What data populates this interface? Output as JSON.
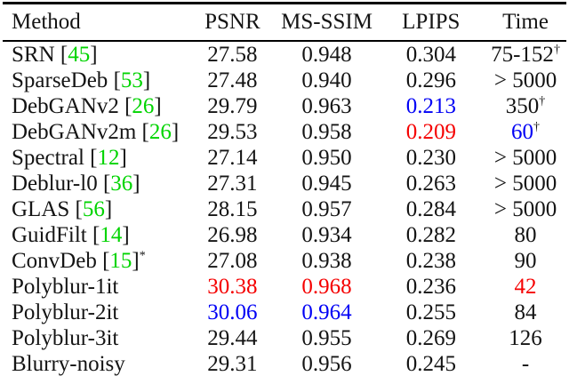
{
  "colors": {
    "black": "#141414",
    "green": "#00d400",
    "blue": "#0000f5",
    "red": "#f50000"
  },
  "table": {
    "columns": [
      "Method",
      "PSNR",
      "MS-SSIM",
      "LPIPS",
      "Time"
    ],
    "rows": [
      {
        "method": "SRN",
        "ref": "45",
        "method_sup": "",
        "psnr": {
          "text": "27.58",
          "color": "black"
        },
        "msssim": {
          "text": "0.948",
          "color": "black"
        },
        "lpips": {
          "text": "0.304",
          "color": "black"
        },
        "time": {
          "text": "75-152",
          "color": "black",
          "sup": "†",
          "sup_color": "black"
        }
      },
      {
        "method": "SparseDeb",
        "ref": "53",
        "method_sup": "",
        "psnr": {
          "text": "27.48",
          "color": "black"
        },
        "msssim": {
          "text": "0.940",
          "color": "black"
        },
        "lpips": {
          "text": "0.296",
          "color": "black"
        },
        "time": {
          "text": "> 5000",
          "color": "black",
          "sup": "",
          "sup_color": "black"
        }
      },
      {
        "method": "DebGANv2",
        "ref": "26",
        "method_sup": "",
        "psnr": {
          "text": "29.79",
          "color": "black"
        },
        "msssim": {
          "text": "0.963",
          "color": "black"
        },
        "lpips": {
          "text": "0.213",
          "color": "blue"
        },
        "time": {
          "text": "350",
          "color": "black",
          "sup": "†",
          "sup_color": "black"
        }
      },
      {
        "method": "DebGANv2m",
        "ref": "26",
        "method_sup": "",
        "psnr": {
          "text": "29.53",
          "color": "black"
        },
        "msssim": {
          "text": "0.958",
          "color": "black"
        },
        "lpips": {
          "text": "0.209",
          "color": "red"
        },
        "time": {
          "text": "60",
          "color": "blue",
          "sup": "†",
          "sup_color": "black"
        }
      },
      {
        "method": "Spectral",
        "ref": "12",
        "method_sup": "",
        "psnr": {
          "text": "27.14",
          "color": "black"
        },
        "msssim": {
          "text": "0.950",
          "color": "black"
        },
        "lpips": {
          "text": "0.230",
          "color": "black"
        },
        "time": {
          "text": "> 5000",
          "color": "black",
          "sup": "",
          "sup_color": "black"
        }
      },
      {
        "method": "Deblur-l0",
        "ref": "36",
        "method_sup": "",
        "psnr": {
          "text": "27.31",
          "color": "black"
        },
        "msssim": {
          "text": "0.945",
          "color": "black"
        },
        "lpips": {
          "text": "0.263",
          "color": "black"
        },
        "time": {
          "text": "> 5000",
          "color": "black",
          "sup": "",
          "sup_color": "black"
        }
      },
      {
        "method": "GLAS",
        "ref": "56",
        "method_sup": "",
        "psnr": {
          "text": "28.15",
          "color": "black"
        },
        "msssim": {
          "text": "0.957",
          "color": "black"
        },
        "lpips": {
          "text": "0.284",
          "color": "black"
        },
        "time": {
          "text": "> 5000",
          "color": "black",
          "sup": "",
          "sup_color": "black"
        }
      },
      {
        "method": "GuidFilt",
        "ref": "14",
        "method_sup": "",
        "psnr": {
          "text": "26.98",
          "color": "black"
        },
        "msssim": {
          "text": "0.934",
          "color": "black"
        },
        "lpips": {
          "text": "0.282",
          "color": "black"
        },
        "time": {
          "text": "80",
          "color": "black",
          "sup": "",
          "sup_color": "black"
        }
      },
      {
        "method": "ConvDeb",
        "ref": "15",
        "method_sup": "*",
        "psnr": {
          "text": "27.08",
          "color": "black"
        },
        "msssim": {
          "text": "0.938",
          "color": "black"
        },
        "lpips": {
          "text": "0.238",
          "color": "black"
        },
        "time": {
          "text": "90",
          "color": "black",
          "sup": "",
          "sup_color": "black"
        }
      },
      {
        "method": "Polyblur-1it",
        "ref": "",
        "method_sup": "",
        "psnr": {
          "text": "30.38",
          "color": "red"
        },
        "msssim": {
          "text": "0.968",
          "color": "red"
        },
        "lpips": {
          "text": "0.236",
          "color": "black"
        },
        "time": {
          "text": "42",
          "color": "red",
          "sup": "",
          "sup_color": "black"
        }
      },
      {
        "method": "Polyblur-2it",
        "ref": "",
        "method_sup": "",
        "psnr": {
          "text": "30.06",
          "color": "blue"
        },
        "msssim": {
          "text": "0.964",
          "color": "blue"
        },
        "lpips": {
          "text": "0.255",
          "color": "black"
        },
        "time": {
          "text": "84",
          "color": "black",
          "sup": "",
          "sup_color": "black"
        }
      },
      {
        "method": "Polyblur-3it",
        "ref": "",
        "method_sup": "",
        "psnr": {
          "text": "29.44",
          "color": "black"
        },
        "msssim": {
          "text": "0.955",
          "color": "black"
        },
        "lpips": {
          "text": "0.269",
          "color": "black"
        },
        "time": {
          "text": "126",
          "color": "black",
          "sup": "",
          "sup_color": "black"
        }
      },
      {
        "method": "Blurry-noisy",
        "ref": "",
        "method_sup": "",
        "psnr": {
          "text": "29.31",
          "color": "black"
        },
        "msssim": {
          "text": "0.956",
          "color": "black"
        },
        "lpips": {
          "text": "0.245",
          "color": "black"
        },
        "time": {
          "text": "-",
          "color": "black",
          "sup": "",
          "sup_color": "black"
        }
      }
    ]
  }
}
